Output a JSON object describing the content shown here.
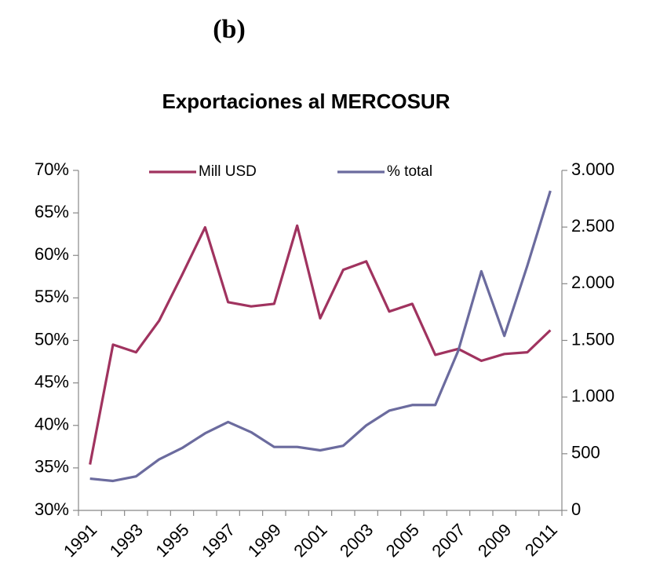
{
  "chart_data": {
    "type": "line",
    "panel_label": "(b)",
    "title": "Exportaciones al MERCOSUR",
    "categories": [
      "1991",
      null,
      "1993",
      null,
      "1995",
      null,
      "1997",
      null,
      "1999",
      null,
      "2001",
      null,
      "2003",
      null,
      "2005",
      null,
      "2007",
      null,
      "2009",
      null,
      "2011"
    ],
    "series": [
      {
        "name": "Mill USD",
        "color": "#a0335f",
        "axis": "y",
        "values": [
          35.4,
          49.5,
          48.6,
          52.3,
          57.7,
          63.3,
          54.5,
          54.0,
          54.3,
          63.5,
          52.6,
          58.3,
          59.3,
          53.4,
          54.3,
          48.3,
          49.0,
          47.6,
          48.4,
          48.6,
          51.2
        ]
      },
      {
        "name": "% total",
        "color": "#6b6b9e",
        "axis": "y2",
        "values": [
          280,
          260,
          300,
          450,
          550,
          680,
          780,
          690,
          560,
          560,
          530,
          570,
          750,
          880,
          930,
          930,
          1410,
          2110,
          1540,
          2160,
          2820
        ]
      }
    ],
    "ylim": [
      30,
      70
    ],
    "yticks": [
      {
        "value": 30,
        "label": "30%"
      },
      {
        "value": 35,
        "label": "35%"
      },
      {
        "value": 40,
        "label": "40%"
      },
      {
        "value": 45,
        "label": "45%"
      },
      {
        "value": 50,
        "label": "50%"
      },
      {
        "value": 55,
        "label": "55%"
      },
      {
        "value": 60,
        "label": "60%"
      },
      {
        "value": 65,
        "label": "65%"
      },
      {
        "value": 70,
        "label": "70%"
      }
    ],
    "y2lim": [
      0,
      3000
    ],
    "y2ticks": [
      0,
      500,
      {
        "value": 1000,
        "label": "1.000"
      },
      {
        "value": 1500,
        "label": "1.500"
      },
      {
        "value": 2000,
        "label": "2.000"
      },
      {
        "value": 2500,
        "label": "2.500"
      },
      {
        "value": 3000,
        "label": "3.000"
      }
    ],
    "legend": "top"
  }
}
